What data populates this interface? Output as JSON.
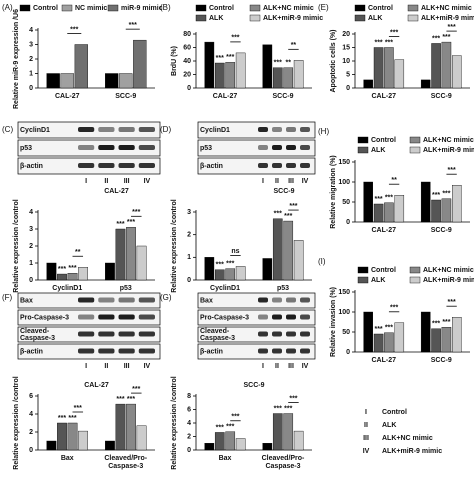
{
  "chart_data": [
    {
      "panel": "(A)",
      "type": "bar",
      "y_label": "Relative miR-9 expression /U6",
      "categories": [
        "CAL-27",
        "SCC-9"
      ],
      "series": [
        {
          "name": "Control",
          "color": "#000000",
          "values": [
            1,
            1
          ]
        },
        {
          "name": "NC mimic",
          "color": "#a0a0a0",
          "values": [
            1,
            1
          ]
        },
        {
          "name": "miR-9 mimic",
          "color": "#707070",
          "values": [
            3.0,
            3.3
          ]
        }
      ],
      "ylim": [
        0,
        4
      ],
      "yticks": [
        0,
        1,
        2,
        3,
        4
      ],
      "annotations": [
        "***",
        "***"
      ]
    },
    {
      "panel": "(B)",
      "type": "bar",
      "y_label": "BrdU (%)",
      "categories": [
        "CAL-27",
        "SCC-9"
      ],
      "series": [
        {
          "name": "Control",
          "color": "#000000",
          "values": [
            68,
            64
          ]
        },
        {
          "name": "ALK",
          "color": "#555555",
          "values": [
            37,
            30
          ]
        },
        {
          "name": "ALK+NC mimic",
          "color": "#888888",
          "values": [
            38,
            30
          ]
        },
        {
          "name": "ALK+miR-9 mimic",
          "color": "#cccccc",
          "values": [
            52,
            41
          ]
        }
      ],
      "ylim": [
        0,
        80
      ],
      "yticks": [
        0,
        20,
        40,
        60,
        80
      ],
      "annotations": [
        "***",
        "***",
        "***",
        "***",
        "**",
        "**"
      ]
    },
    {
      "panel": "(E)",
      "type": "bar",
      "y_label": "Apoptotic cells (%)",
      "categories": [
        "CAL-27",
        "SCC-9"
      ],
      "series": [
        {
          "name": "Control",
          "color": "#000000",
          "values": [
            3,
            3
          ]
        },
        {
          "name": "ALK",
          "color": "#555555",
          "values": [
            15,
            16.5
          ]
        },
        {
          "name": "ALK+NC mimic",
          "color": "#888888",
          "values": [
            15,
            17
          ]
        },
        {
          "name": "ALK+miR-9 mimic",
          "color": "#cccccc",
          "values": [
            10.5,
            12
          ]
        }
      ],
      "ylim": [
        0,
        20
      ],
      "yticks": [
        0,
        5,
        10,
        15,
        20
      ],
      "annotations": [
        "***",
        "***",
        "***",
        "***",
        "***",
        "***"
      ]
    },
    {
      "panel": "(C)",
      "type": "bar",
      "blot": {
        "rows": [
          [
            "CyclinD1"
          ],
          [
            "p53"
          ],
          [
            "β-actin"
          ]
        ],
        "lanes": [
          "I",
          "II",
          "III",
          "IV"
        ],
        "label": "CAL-27"
      },
      "y_label": "Relative expression /control",
      "categories": [
        "CyclinD1",
        "p53"
      ],
      "series": [
        {
          "color": "#000000",
          "values": [
            1,
            1
          ]
        },
        {
          "color": "#555555",
          "values": [
            0.35,
            3.0
          ]
        },
        {
          "color": "#888888",
          "values": [
            0.4,
            3.1
          ]
        },
        {
          "color": "#cccccc",
          "values": [
            0.75,
            2.0
          ]
        }
      ],
      "ylim": [
        0,
        4
      ],
      "yticks": [
        0,
        1,
        2,
        3,
        4
      ],
      "annotations": [
        "***",
        "***",
        "**",
        "***",
        "***",
        "***"
      ]
    },
    {
      "panel": "(D)",
      "type": "bar",
      "blot": {
        "rows": [
          [
            "CyclinD1"
          ],
          [
            "p53"
          ],
          [
            "β-actin"
          ]
        ],
        "lanes": [
          "I",
          "II",
          "III",
          "IV"
        ],
        "label": "SCC-9"
      },
      "y_label": "Relative expression /control",
      "categories": [
        "CyclinD1",
        "p53"
      ],
      "series": [
        {
          "color": "#000000",
          "values": [
            1,
            0.95
          ]
        },
        {
          "color": "#555555",
          "values": [
            0.45,
            2.7
          ]
        },
        {
          "color": "#888888",
          "values": [
            0.5,
            2.6
          ]
        },
        {
          "color": "#cccccc",
          "values": [
            0.6,
            1.75
          ]
        }
      ],
      "ylim": [
        0,
        3
      ],
      "yticks": [
        0,
        1,
        2,
        3
      ],
      "annotations": [
        "***",
        "***",
        "ns",
        "***",
        "***",
        "***"
      ]
    },
    {
      "panel": "(H)",
      "type": "bar",
      "y_label": "Relative migration (%)",
      "categories": [
        "CAL-27",
        "SCC-9"
      ],
      "series": [
        {
          "name": "Control",
          "color": "#000000",
          "values": [
            100,
            100
          ]
        },
        {
          "name": "ALK",
          "color": "#555555",
          "values": [
            45,
            55
          ]
        },
        {
          "name": "ALK+NC mimic",
          "color": "#888888",
          "values": [
            48,
            58
          ]
        },
        {
          "name": "ALK+miR-9 mimic",
          "color": "#cccccc",
          "values": [
            67,
            92
          ]
        }
      ],
      "ylim": [
        0,
        150
      ],
      "yticks": [
        0,
        50,
        100,
        150
      ],
      "annotations": [
        "***",
        "***",
        "**",
        "***",
        "***",
        "***"
      ]
    },
    {
      "panel": "(I)",
      "type": "bar",
      "y_label": "Relative invasion (%)",
      "categories": [
        "CAL-27",
        "SCC-9"
      ],
      "series": [
        {
          "name": "Control",
          "color": "#000000",
          "values": [
            100,
            100
          ]
        },
        {
          "name": "ALK",
          "color": "#555555",
          "values": [
            45,
            58
          ]
        },
        {
          "name": "ALK+NC mimic",
          "color": "#888888",
          "values": [
            48,
            62
          ]
        },
        {
          "name": "ALK+miR-9 mimic",
          "color": "#cccccc",
          "values": [
            73,
            87
          ]
        }
      ],
      "ylim": [
        0,
        150
      ],
      "yticks": [
        0,
        50,
        100,
        150
      ],
      "annotations": [
        "***",
        "***",
        "***",
        "***",
        "***",
        "***"
      ]
    },
    {
      "panel": "(F)",
      "type": "bar",
      "blot": {
        "rows": [
          [
            "Bax"
          ],
          [
            "Pro-Caspase-3"
          ],
          [
            "Cleaved-",
            "Caspase-3"
          ],
          [
            "β-actin"
          ]
        ],
        "lanes": [
          "I",
          "II",
          "III",
          "IV"
        ]
      },
      "title": "CAL-27",
      "y_label": "Relative expression /control",
      "categories": [
        [
          "Bax"
        ],
        [
          "Cleaved/Pro-",
          "Caspase-3"
        ]
      ],
      "series": [
        {
          "color": "#000000",
          "values": [
            1,
            1
          ]
        },
        {
          "color": "#555555",
          "values": [
            3.0,
            5.1
          ]
        },
        {
          "color": "#888888",
          "values": [
            3.0,
            5.1
          ]
        },
        {
          "color": "#cccccc",
          "values": [
            2.1,
            2.7
          ]
        }
      ],
      "ylim": [
        0,
        6
      ],
      "yticks": [
        0,
        2,
        4,
        6
      ],
      "annotations": [
        "***",
        "***",
        "***",
        "***",
        "***",
        "***"
      ]
    },
    {
      "panel": "(G)",
      "type": "bar",
      "blot": {
        "rows": [
          [
            "Bax"
          ],
          [
            "Pro-Caspase-3"
          ],
          [
            "Cleaved-",
            "Caspase-3"
          ],
          [
            "β-actin"
          ]
        ],
        "lanes": [
          "I",
          "II",
          "III",
          "IV"
        ]
      },
      "title": "SCC-9",
      "y_label": "Relative expression /control",
      "categories": [
        [
          "Bax"
        ],
        [
          "Cleaved/Pro-",
          "Caspase-3"
        ]
      ],
      "series": [
        {
          "color": "#000000",
          "values": [
            1,
            1
          ]
        },
        {
          "color": "#555555",
          "values": [
            2.6,
            5.4
          ]
        },
        {
          "color": "#888888",
          "values": [
            2.7,
            5.4
          ]
        },
        {
          "color": "#cccccc",
          "values": [
            1.7,
            2.8
          ]
        }
      ],
      "ylim": [
        0,
        8
      ],
      "yticks": [
        0,
        2,
        4,
        6,
        8
      ],
      "annotations": [
        "***",
        "***",
        "***",
        "***",
        "***",
        "***"
      ]
    }
  ],
  "key": {
    "items": [
      {
        "symbol": "I",
        "label": "Control"
      },
      {
        "symbol": "II",
        "label": "ALK"
      },
      {
        "symbol": "III",
        "label": "ALK+NC mimic"
      },
      {
        "symbol": "IV",
        "label": "ALK+miR-9 mimic"
      }
    ]
  }
}
